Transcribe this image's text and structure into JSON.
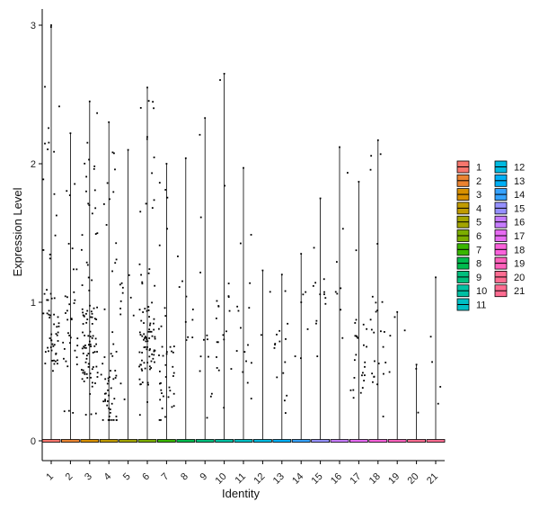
{
  "chart_data": {
    "type": "violin",
    "xlabel": "Identity",
    "ylabel": "Expression Level",
    "ylim": [
      0,
      3
    ],
    "yticks": [
      "0",
      "1",
      "2",
      "3"
    ],
    "categories": [
      "1",
      "2",
      "3",
      "4",
      "5",
      "6",
      "7",
      "8",
      "9",
      "10",
      "11",
      "12",
      "13",
      "14",
      "15",
      "16",
      "17",
      "18",
      "19",
      "20",
      "21"
    ],
    "max_values": [
      3.0,
      2.22,
      2.45,
      2.3,
      2.1,
      2.55,
      2.0,
      2.04,
      2.33,
      2.65,
      1.97,
      1.23,
      1.2,
      1.35,
      1.75,
      2.12,
      1.87,
      2.17,
      0.93,
      0.55,
      1.18
    ],
    "point_density": [
      60,
      35,
      95,
      55,
      12,
      90,
      40,
      10,
      12,
      20,
      15,
      2,
      15,
      6,
      12,
      8,
      25,
      25,
      4,
      2,
      4
    ],
    "point_centers": [
      0.8,
      0.8,
      0.7,
      0.35,
      0.9,
      0.7,
      0.4,
      1.0,
      0.6,
      0.8,
      0.7,
      1.0,
      0.5,
      0.9,
      0.9,
      1.0,
      0.6,
      0.7,
      0.6,
      0.4,
      0.6
    ],
    "colors": [
      "#F8766D",
      "#EA8331",
      "#D89000",
      "#C09B00",
      "#A3A500",
      "#7CAE00",
      "#39B600",
      "#00BB4E",
      "#00BF7D",
      "#00C1A3",
      "#00BFC4",
      "#00BAE0",
      "#00B0F6",
      "#35A2FF",
      "#9590FF",
      "#C77CFF",
      "#E76BF3",
      "#FA62DB",
      "#FF62BC",
      "#FF6C91",
      "#FF6C91"
    ],
    "legend": {
      "placement": "right",
      "columns": 2,
      "items": [
        "1",
        "2",
        "3",
        "4",
        "5",
        "6",
        "7",
        "8",
        "9",
        "10",
        "11",
        "12",
        "13",
        "14",
        "15",
        "16",
        "17",
        "18",
        "19",
        "20",
        "21"
      ]
    }
  }
}
